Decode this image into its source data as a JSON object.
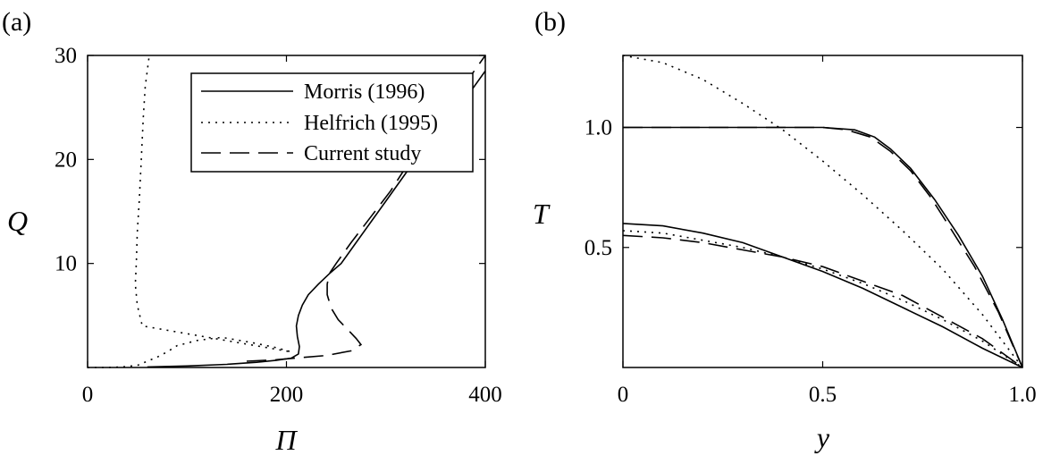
{
  "chart_data": [
    {
      "type": "line",
      "panel_label": "(a)",
      "xlabel": "Π",
      "ylabel": "Q",
      "xlim": [
        0,
        400
      ],
      "ylim": [
        0,
        30
      ],
      "x_ticks": [
        0,
        200,
        400
      ],
      "y_ticks": [
        10,
        20,
        30
      ],
      "grid": false,
      "legend_position": "top-right",
      "series": [
        {
          "name": "Morris (1996)",
          "style": "solid",
          "points": [
            [
              60,
              0.05
            ],
            [
              100,
              0.15
            ],
            [
              140,
              0.3
            ],
            [
              170,
              0.5
            ],
            [
              190,
              0.7
            ],
            [
              205,
              0.9
            ],
            [
              212,
              1.3
            ],
            [
              213,
              2.0
            ],
            [
              211,
              3.0
            ],
            [
              210,
              4.0
            ],
            [
              212,
              5.0
            ],
            [
              216,
              6.0
            ],
            [
              222,
              7.0
            ],
            [
              232,
              8.0
            ],
            [
              243,
              9.0
            ],
            [
              255,
              10.0
            ],
            [
              270,
              12.0
            ],
            [
              285,
              14.0
            ],
            [
              300,
              16.0
            ],
            [
              315,
              18.0
            ],
            [
              330,
              20.0
            ],
            [
              350,
              22.0
            ],
            [
              370,
              24.5
            ],
            [
              385,
              26.5
            ],
            [
              400,
              28.5
            ]
          ]
        },
        {
          "name": "Helfrich (1995)",
          "style": "dotted",
          "points": [
            [
              0,
              0.0
            ],
            [
              20,
              0.0
            ],
            [
              35,
              0.05
            ],
            [
              50,
              0.2
            ],
            [
              60,
              0.6
            ],
            [
              70,
              1.0
            ],
            [
              80,
              1.5
            ],
            [
              90,
              2.1
            ],
            [
              110,
              2.6
            ],
            [
              135,
              2.9
            ],
            [
              165,
              2.4
            ],
            [
              190,
              1.9
            ],
            [
              205,
              1.5
            ],
            [
              55,
              4.0
            ],
            [
              50,
              6.0
            ],
            [
              48,
              8.0
            ],
            [
              49,
              10.0
            ],
            [
              50,
              13.0
            ],
            [
              52,
              16.0
            ],
            [
              54,
              20.0
            ],
            [
              56,
              24.0
            ],
            [
              58,
              27.0
            ],
            [
              62,
              30.0
            ]
          ]
        },
        {
          "name": "Current study",
          "style": "dashed",
          "points": [
            [
              160,
              0.6
            ],
            [
              190,
              0.75
            ],
            [
              215,
              0.95
            ],
            [
              240,
              1.15
            ],
            [
              265,
              1.6
            ],
            [
              275,
              2.2
            ],
            [
              270,
              2.8
            ],
            [
              262,
              3.6
            ],
            [
              252,
              4.6
            ],
            [
              245,
              5.7
            ],
            [
              241,
              7.0
            ],
            [
              241,
              8.0
            ],
            [
              243,
              9.0
            ],
            [
              250,
              10.0
            ],
            [
              265,
              12.0
            ],
            [
              285,
              14.5
            ],
            [
              305,
              17.0
            ],
            [
              325,
              20.0
            ],
            [
              345,
              22.5
            ],
            [
              365,
              25.0
            ],
            [
              385,
              28.0
            ],
            [
              400,
              30.0
            ]
          ]
        }
      ]
    },
    {
      "type": "line",
      "panel_label": "(b)",
      "xlabel": "y",
      "ylabel": "T",
      "xlim": [
        0,
        1.0
      ],
      "ylim": [
        0,
        1.3
      ],
      "x_ticks": [
        0,
        0.5,
        1.0
      ],
      "x_tick_labels": [
        "0",
        "0.5",
        "1.0"
      ],
      "y_ticks": [
        0.5,
        1.0
      ],
      "y_tick_labels": [
        "0.5",
        "1.0"
      ],
      "grid": false,
      "series": [
        {
          "name": "Morris (1996)",
          "style": "solid",
          "points": [
            [
              0,
              1.0
            ],
            [
              0.5,
              1.0
            ],
            [
              0.58,
              0.99
            ],
            [
              0.63,
              0.96
            ],
            [
              0.67,
              0.91
            ],
            [
              0.72,
              0.83
            ],
            [
              0.78,
              0.7
            ],
            [
              0.84,
              0.55
            ],
            [
              0.9,
              0.38
            ],
            [
              0.95,
              0.2
            ],
            [
              1.0,
              0.0
            ]
          ]
        },
        {
          "name": "Morris (1996)",
          "style": "solid",
          "points": [
            [
              0,
              0.6
            ],
            [
              0.1,
              0.59
            ],
            [
              0.2,
              0.56
            ],
            [
              0.3,
              0.52
            ],
            [
              0.4,
              0.46
            ],
            [
              0.5,
              0.4
            ],
            [
              0.6,
              0.33
            ],
            [
              0.7,
              0.25
            ],
            [
              0.8,
              0.17
            ],
            [
              0.9,
              0.08
            ],
            [
              1.0,
              0.0
            ]
          ]
        },
        {
          "name": "Helfrich (1995)",
          "style": "dotted",
          "points": [
            [
              0,
              1.3
            ],
            [
              0.1,
              1.27
            ],
            [
              0.2,
              1.2
            ],
            [
              0.3,
              1.1
            ],
            [
              0.4,
              0.99
            ],
            [
              0.5,
              0.86
            ],
            [
              0.6,
              0.72
            ],
            [
              0.7,
              0.57
            ],
            [
              0.8,
              0.41
            ],
            [
              0.9,
              0.22
            ],
            [
              1.0,
              0.0
            ]
          ]
        },
        {
          "name": "Helfrich (1995)",
          "style": "dotted",
          "points": [
            [
              0,
              0.57
            ],
            [
              0.1,
              0.56
            ],
            [
              0.2,
              0.53
            ],
            [
              0.3,
              0.5
            ],
            [
              0.4,
              0.46
            ],
            [
              0.5,
              0.41
            ],
            [
              0.6,
              0.35
            ],
            [
              0.7,
              0.28
            ],
            [
              0.8,
              0.2
            ],
            [
              0.9,
              0.11
            ],
            [
              1.0,
              0.0
            ]
          ]
        },
        {
          "name": "Current study",
          "style": "dashed",
          "points": [
            [
              0,
              1.0
            ],
            [
              0.5,
              1.0
            ],
            [
              0.56,
              0.99
            ],
            [
              0.62,
              0.96
            ],
            [
              0.67,
              0.9
            ],
            [
              0.72,
              0.82
            ],
            [
              0.77,
              0.71
            ],
            [
              0.82,
              0.58
            ],
            [
              0.88,
              0.42
            ],
            [
              0.94,
              0.23
            ],
            [
              1.0,
              0.0
            ]
          ]
        },
        {
          "name": "Current study",
          "style": "dashed",
          "points": [
            [
              0,
              0.55
            ],
            [
              0.1,
              0.54
            ],
            [
              0.2,
              0.52
            ],
            [
              0.3,
              0.49
            ],
            [
              0.4,
              0.46
            ],
            [
              0.5,
              0.42
            ],
            [
              0.6,
              0.36
            ],
            [
              0.7,
              0.3
            ],
            [
              0.8,
              0.21
            ],
            [
              0.9,
              0.12
            ],
            [
              1.0,
              0.0
            ]
          ]
        }
      ]
    }
  ]
}
